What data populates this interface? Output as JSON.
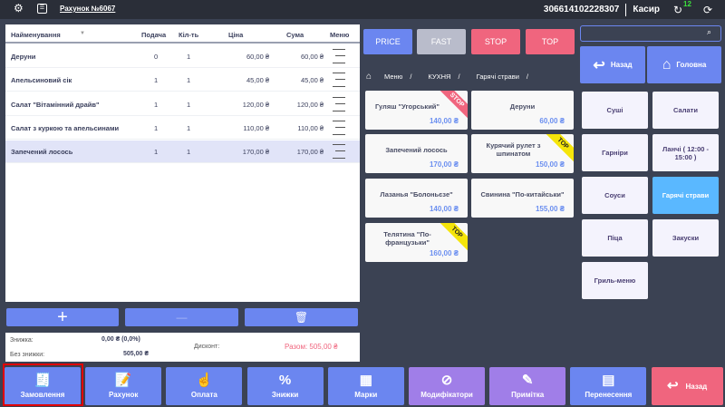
{
  "header": {
    "title": "Рахунок №6067",
    "fiscal_number": "306614102228307",
    "role": "Касир",
    "sync_count": "12"
  },
  "table": {
    "columns": [
      "Найменування",
      "Подача",
      "Кіл-ть",
      "Ціна",
      "Сума",
      "Меню"
    ],
    "rows": [
      {
        "name": "Деруни",
        "serve": "0",
        "qty": "1",
        "price": "60,00 ₴",
        "sum": "60,00 ₴"
      },
      {
        "name": "Апельсиновий сік",
        "serve": "1",
        "qty": "1",
        "price": "45,00 ₴",
        "sum": "45,00 ₴"
      },
      {
        "name": "Салат \"Вітамінний драйв\"",
        "serve": "1",
        "qty": "1",
        "price": "120,00 ₴",
        "sum": "120,00 ₴"
      },
      {
        "name": "Салат з куркою та апельсинами",
        "serve": "1",
        "qty": "1",
        "price": "110,00 ₴",
        "sum": "110,00 ₴"
      },
      {
        "name": "Запечений лосось",
        "serve": "1",
        "qty": "1",
        "price": "170,00 ₴",
        "sum": "170,00 ₴",
        "selected": true
      }
    ]
  },
  "summary": {
    "discount_label": "Знижка:",
    "discount_value": "0,00 ₴  (0,0%)",
    "without_label": "Без знижки:",
    "without_value": "505,00 ₴",
    "card_label": "Дисконт:",
    "total": "Разом: 505,00 ₴"
  },
  "filters": [
    "PRICE",
    "FAST",
    "STOP",
    "TOP"
  ],
  "search": {
    "placeholder": ""
  },
  "nav": {
    "back": "Назад",
    "home": "Головна"
  },
  "breadcrumb": [
    "Меню",
    "/",
    "КУХНЯ",
    "/",
    "Гарячі страви",
    "/"
  ],
  "products": [
    {
      "name": "Гуляш \"Угорський\"",
      "price": "140,00 ₴",
      "badge": "STOP"
    },
    {
      "name": "Деруни",
      "price": "60,00 ₴"
    },
    {
      "name": "Запечений лосось",
      "price": "170,00 ₴"
    },
    {
      "name": "Курячий рулет з шпинатом",
      "price": "150,00 ₴",
      "badge": "TOP"
    },
    {
      "name": "Лазанья \"Болоньєзе\"",
      "price": "140,00 ₴"
    },
    {
      "name": "Свинина \"По-китайськи\"",
      "price": "155,00 ₴"
    },
    {
      "name": "Телятина \"По-французьки\"",
      "price": "160,00 ₴",
      "badge": "TOP"
    }
  ],
  "categories": [
    {
      "label": "Суші"
    },
    {
      "label": "Салати"
    },
    {
      "label": "Гарніри"
    },
    {
      "label": "Ланчі ( 12:00 - 15:00 )"
    },
    {
      "label": "Соуси"
    },
    {
      "label": "Гарячі страви",
      "active": true
    },
    {
      "label": "Піца"
    },
    {
      "label": "Закуски"
    },
    {
      "label": "Гриль-меню"
    }
  ],
  "bottom": [
    {
      "label": "Замовлення",
      "icon": "receipt-icon",
      "color": "#6b86f0"
    },
    {
      "label": "Рахунок",
      "icon": "bill-edit-icon",
      "color": "#6b86f0"
    },
    {
      "label": "Оплата",
      "icon": "payment-icon",
      "color": "#6b86f0"
    },
    {
      "label": "Знижки",
      "icon": "discount-icon",
      "color": "#6b86f0"
    },
    {
      "label": "Марки",
      "icon": "qr-code-icon",
      "color": "#6b86f0"
    },
    {
      "label": "Модифікатори",
      "icon": "modifier-icon",
      "color": "#a07ee8"
    },
    {
      "label": "Примітка",
      "icon": "pen-icon",
      "color": "#a07ee8"
    },
    {
      "label": "Перенесення",
      "icon": "transfer-icon",
      "color": "#6b86f0"
    },
    {
      "label": "Назад",
      "icon": "back-arrow-icon",
      "color": "#f0657e"
    }
  ],
  "colors": {
    "accent": "#6b86f0",
    "stop": "#f0657e",
    "active_category": "#5ab8ff",
    "price": "#6b8ff0",
    "highlight": "#e00000"
  }
}
